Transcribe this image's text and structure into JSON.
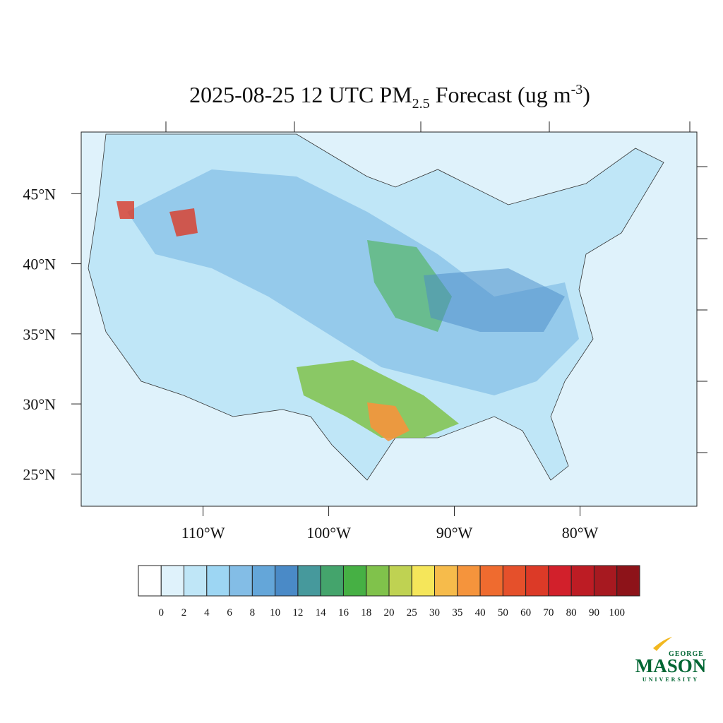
{
  "chart_data": {
    "type": "map",
    "title": {
      "prefix": "2025-08-25 12 UTC PM",
      "subscript": "2.5",
      "middle": " Forecast (ug m",
      "superscript": "-3",
      "suffix": ")"
    },
    "xlim": [
      -119.7,
      -70.7
    ],
    "ylim": [
      22.7,
      49.4
    ],
    "xticks": [
      {
        "value": -110,
        "label": "110°W"
      },
      {
        "value": -100,
        "label": "100°W"
      },
      {
        "value": -90,
        "label": "90°W"
      },
      {
        "value": -80,
        "label": "80°W"
      }
    ],
    "yticks": [
      {
        "value": 25,
        "label": "25°N"
      },
      {
        "value": 30,
        "label": "30°N"
      },
      {
        "value": 35,
        "label": "35°N"
      },
      {
        "value": 40,
        "label": "40°N"
      },
      {
        "value": 45,
        "label": "45°N"
      }
    ],
    "colorbar": {
      "levels": [
        0,
        2,
        4,
        6,
        8,
        10,
        12,
        14,
        16,
        18,
        20,
        25,
        30,
        35,
        40,
        50,
        60,
        70,
        80,
        90,
        100
      ],
      "colors": [
        "#ffffff",
        "#dff2fb",
        "#bfe6f7",
        "#9dd6f3",
        "#83bde6",
        "#64a6d9",
        "#4a8ac7",
        "#46999c",
        "#44a46c",
        "#46b044",
        "#80c24b",
        "#bfd252",
        "#f5e65a",
        "#f6bb4b",
        "#f5943c",
        "#ef6b2f",
        "#e5502b",
        "#dc3a27",
        "#d2202b",
        "#bd1c24",
        "#a71920",
        "#8d1319"
      ]
    }
  },
  "logo": {
    "top": "GEORGE",
    "main": "MASON",
    "bottom": "UNIVERSITY"
  }
}
